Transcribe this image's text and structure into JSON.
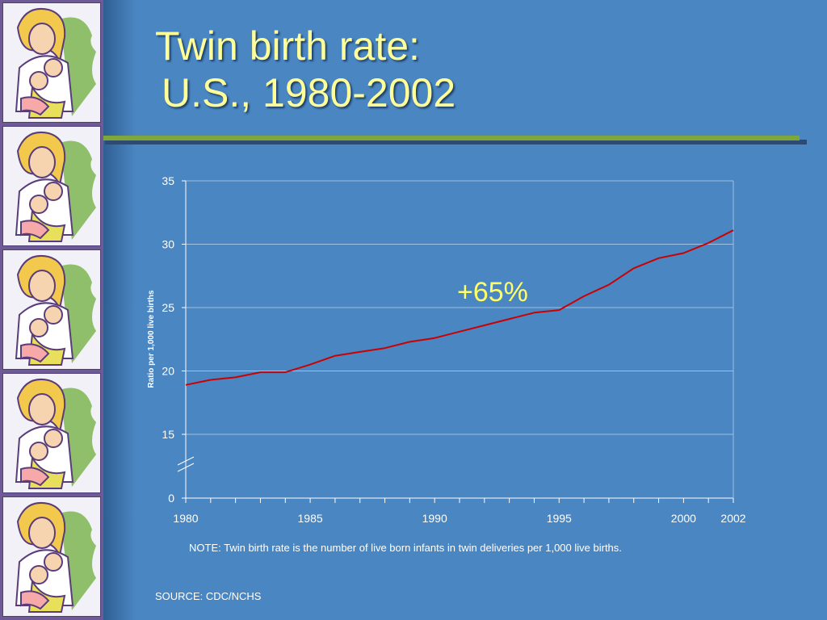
{
  "slide": {
    "title_line1": "Twin birth rate:",
    "title_line2": "U.S., 1980-2002",
    "note": "NOTE: Twin birth rate is the number of live born infants in twin deliveries per 1,000  live births.",
    "source": "SOURCE: CDC/NCHS",
    "colors": {
      "background": "#4a86c2",
      "title": "#ffff99",
      "rule": "#7da63b",
      "series": "#cc0000",
      "annotation": "#ffff66"
    },
    "decoration": {
      "icon": "mother-with-twins-clipart",
      "tiles": 5
    }
  },
  "chart_data": {
    "type": "line",
    "ylabel": "Ratio per 1,000 live births",
    "y_ticks": [
      "35",
      "30",
      "25",
      "20",
      "15",
      "0"
    ],
    "y_axis_break": "between 0 and 15",
    "ylim": [
      15,
      35
    ],
    "x_tick_labels": [
      "1980",
      "1985",
      "1990",
      "1995",
      "2000",
      "2002"
    ],
    "xlim": [
      1980,
      2002
    ],
    "grid": "horizontal",
    "series": [
      {
        "x": [
          1980,
          1981,
          1982,
          1983,
          1984,
          1985,
          1986,
          1987,
          1988,
          1989,
          1990,
          1991,
          1992,
          1993,
          1994,
          1995,
          1996,
          1997,
          1998,
          1999,
          2000,
          2001,
          2002
        ],
        "values": [
          18.9,
          19.3,
          19.5,
          19.9,
          19.9,
          20.5,
          21.2,
          21.5,
          21.8,
          22.3,
          22.6,
          23.1,
          23.6,
          24.1,
          24.6,
          24.8,
          25.9,
          26.8,
          28.1,
          28.9,
          29.3,
          30.1,
          31.1
        ]
      }
    ],
    "annotation": "+65%"
  }
}
